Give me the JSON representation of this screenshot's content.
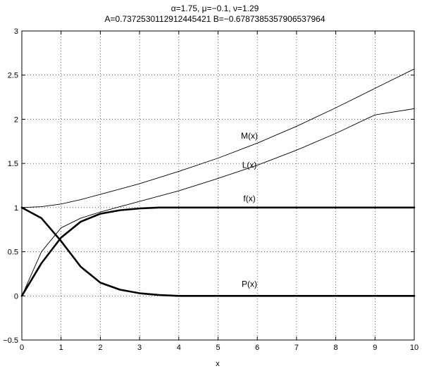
{
  "chart_data": {
    "type": "line",
    "title_line1": "α=1.75, μ=−0.1, ν=1.29",
    "title_line2": "A=0.7372530112912445421   B=−0.6787385357906537964",
    "xlabel": "x",
    "ylabel": "",
    "xlim": [
      0,
      10
    ],
    "ylim": [
      -0.5,
      3
    ],
    "grid": true,
    "x_ticks": [
      0,
      1,
      2,
      3,
      4,
      5,
      6,
      7,
      8,
      9,
      10
    ],
    "x_tick_labels": [
      "0",
      "1",
      "2",
      "3",
      "4",
      "5",
      "6",
      "7",
      "8",
      "9",
      "10"
    ],
    "y_ticks": [
      -0.5,
      0,
      0.5,
      1,
      1.5,
      2,
      2.5,
      3
    ],
    "y_tick_labels": [
      "−0.5",
      "0",
      "0.5",
      "1",
      "1.5",
      "2",
      "2.5",
      "3"
    ],
    "x": [
      0,
      0.5,
      1,
      1.5,
      2,
      2.5,
      3,
      3.5,
      4,
      5,
      6,
      7,
      8,
      9,
      10
    ],
    "series": [
      {
        "name": "M(x)",
        "label_at": [
          5.8,
          1.78
        ],
        "weight": "thin",
        "values": [
          1.0,
          1.01,
          1.04,
          1.09,
          1.15,
          1.21,
          1.27,
          1.34,
          1.41,
          1.56,
          1.73,
          1.92,
          2.13,
          2.35,
          2.57
        ]
      },
      {
        "name": "L(x)",
        "label_at": [
          5.8,
          1.45
        ],
        "weight": "thin",
        "values": [
          0.0,
          0.5,
          0.77,
          0.88,
          0.95,
          1.01,
          1.07,
          1.13,
          1.19,
          1.33,
          1.48,
          1.65,
          1.84,
          2.05,
          2.12
        ]
      },
      {
        "name": "f(x)",
        "label_at": [
          5.8,
          1.07
        ],
        "weight": "thick",
        "values": [
          0.0,
          0.37,
          0.66,
          0.84,
          0.93,
          0.97,
          0.99,
          1.0,
          1.0,
          1.0,
          1.0,
          1.0,
          1.0,
          1.0,
          1.0
        ]
      },
      {
        "name": "P(x)",
        "label_at": [
          5.8,
          0.1
        ],
        "weight": "thick",
        "values": [
          1.0,
          0.88,
          0.62,
          0.33,
          0.15,
          0.07,
          0.03,
          0.01,
          0.0,
          0.0,
          0.0,
          0.0,
          0.0,
          0.0,
          0.0
        ]
      }
    ]
  }
}
